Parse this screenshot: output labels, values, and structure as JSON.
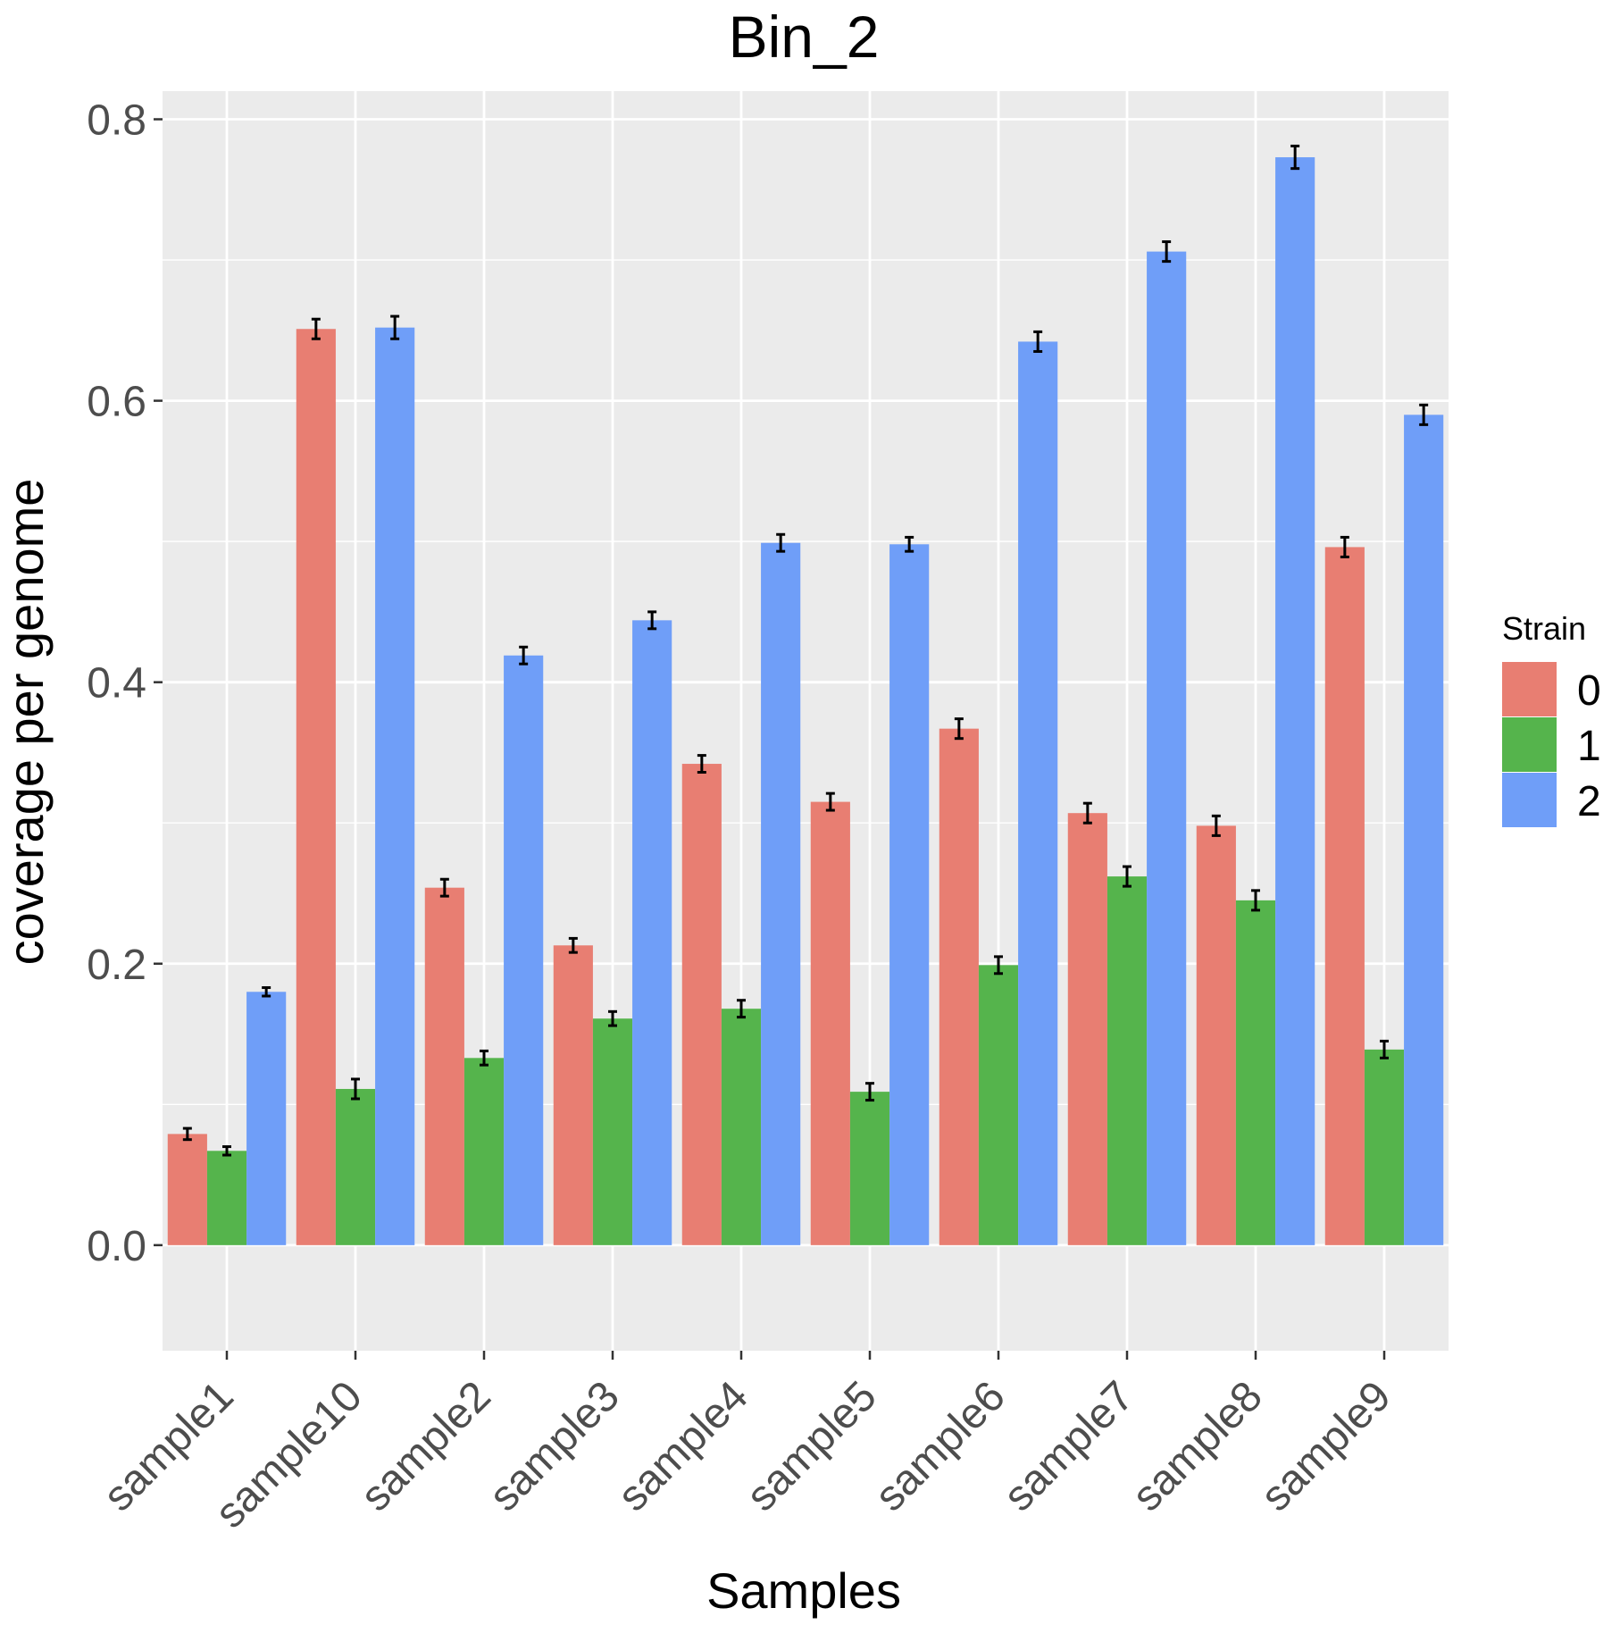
{
  "chart_data": {
    "type": "bar",
    "title": "Bin_2",
    "xlabel": "Samples",
    "ylabel": "coverage per genome",
    "ylim": [
      -0.075,
      0.82
    ],
    "yticks": [
      0.0,
      0.2,
      0.4,
      0.6,
      0.8
    ],
    "ytick_labels": [
      "0.0",
      "0.2",
      "0.4",
      "0.6",
      "0.8"
    ],
    "grid": true,
    "categories": [
      "sample1",
      "sample10",
      "sample2",
      "sample3",
      "sample4",
      "sample5",
      "sample6",
      "sample7",
      "sample8",
      "sample9"
    ],
    "legend": {
      "title": "Strain",
      "position": "right"
    },
    "series": [
      {
        "name": "0",
        "color": "#E87E72",
        "values": [
          0.079,
          0.651,
          0.254,
          0.213,
          0.342,
          0.315,
          0.367,
          0.307,
          0.298,
          0.496
        ],
        "errors": [
          0.004,
          0.007,
          0.006,
          0.005,
          0.006,
          0.006,
          0.007,
          0.007,
          0.007,
          0.007
        ]
      },
      {
        "name": "1",
        "color": "#55B44C",
        "values": [
          0.067,
          0.111,
          0.133,
          0.161,
          0.168,
          0.109,
          0.199,
          0.262,
          0.245,
          0.139
        ],
        "errors": [
          0.003,
          0.007,
          0.005,
          0.005,
          0.006,
          0.006,
          0.006,
          0.007,
          0.007,
          0.006
        ]
      },
      {
        "name": "2",
        "color": "#6F9EF8",
        "values": [
          0.18,
          0.652,
          0.419,
          0.444,
          0.499,
          0.498,
          0.642,
          0.706,
          0.773,
          0.59
        ],
        "errors": [
          0.003,
          0.008,
          0.006,
          0.006,
          0.006,
          0.005,
          0.007,
          0.007,
          0.008,
          0.007
        ]
      }
    ]
  }
}
